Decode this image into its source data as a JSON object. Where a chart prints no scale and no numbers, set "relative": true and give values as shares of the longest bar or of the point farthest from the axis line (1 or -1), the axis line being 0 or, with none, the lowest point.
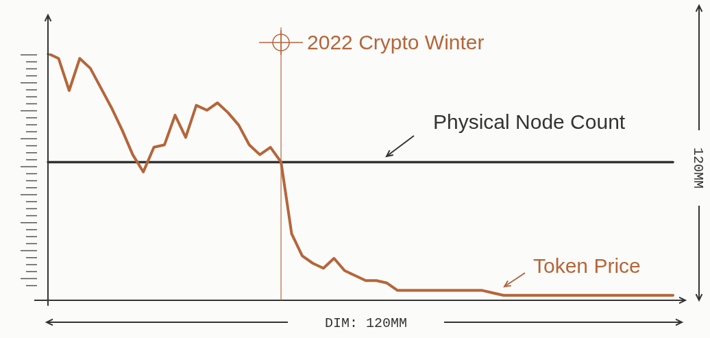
{
  "chart_data": {
    "type": "line",
    "relative": true,
    "categories": [
      null,
      null,
      null,
      null,
      null,
      null,
      null,
      null,
      null,
      null,
      null,
      null,
      null,
      null,
      null,
      null,
      null,
      null,
      null,
      null,
      null,
      null,
      null,
      null,
      null,
      null,
      null,
      null,
      null,
      null,
      null,
      null,
      null,
      null,
      null,
      null,
      null,
      null,
      null,
      null,
      null,
      null,
      null,
      null,
      null,
      null,
      null,
      null,
      null,
      null,
      null,
      null,
      null,
      null,
      null,
      null,
      null,
      null,
      null,
      null
    ],
    "series": [
      {
        "name": "Physical Node Count",
        "color": "#333333",
        "values": [
          0.56,
          0.56,
          0.56,
          0.56,
          0.56,
          0.56,
          0.56,
          0.56,
          0.56,
          0.56,
          0.56,
          0.56,
          0.56,
          0.56,
          0.56,
          0.56,
          0.56,
          0.56,
          0.56,
          0.56,
          0.56,
          0.56,
          0.56,
          0.56,
          0.56,
          0.56,
          0.56,
          0.56,
          0.56,
          0.56,
          0.56,
          0.56,
          0.56,
          0.56,
          0.56,
          0.56,
          0.56,
          0.56,
          0.56,
          0.56,
          0.56,
          0.56,
          0.56,
          0.56,
          0.56,
          0.56,
          0.56,
          0.56,
          0.56,
          0.56,
          0.56,
          0.56,
          0.56,
          0.56,
          0.56,
          0.56,
          0.56,
          0.56,
          0.56,
          0.56
        ]
      },
      {
        "name": "Token Price",
        "color": "#b5653a",
        "values": [
          1.0,
          0.98,
          0.85,
          0.98,
          0.94,
          0.86,
          0.78,
          0.69,
          0.59,
          0.52,
          0.62,
          0.63,
          0.75,
          0.66,
          0.79,
          0.77,
          0.8,
          0.76,
          0.71,
          0.63,
          0.59,
          0.62,
          0.56,
          0.27,
          0.18,
          0.15,
          0.13,
          0.17,
          0.12,
          0.1,
          0.08,
          0.08,
          0.07,
          0.04,
          0.04,
          0.04,
          0.04,
          0.04,
          0.04,
          0.04,
          0.04,
          0.04,
          0.03,
          0.02,
          0.02,
          0.02,
          0.02,
          0.02,
          0.02,
          0.02,
          0.02,
          0.02,
          0.02,
          0.02,
          0.02,
          0.02,
          0.02,
          0.02,
          0.02,
          0.02
        ]
      }
    ],
    "annotations": [
      "DIM: 120MM",
      "120MM",
      "2022 Crypto Winter"
    ]
  }
}
